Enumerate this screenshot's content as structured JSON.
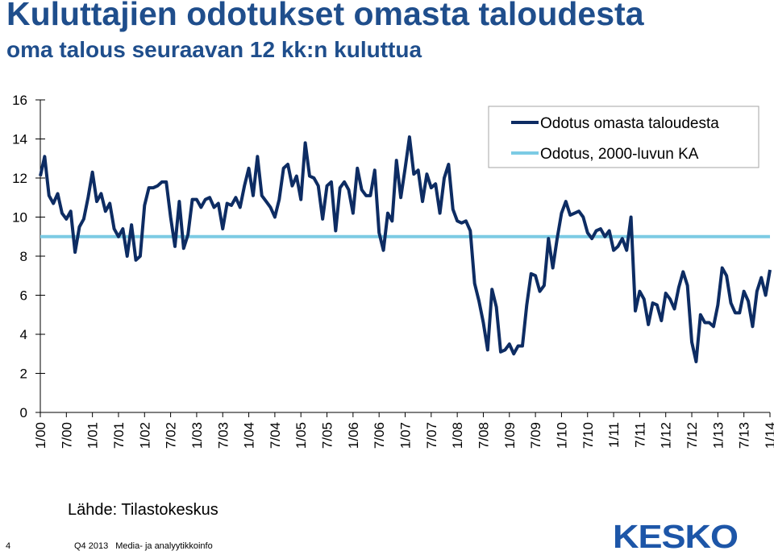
{
  "title": "Kuluttajien odotukset omasta taloudesta",
  "subtitle": "oma talous seuraavan 12 kk:n kuluttua",
  "source": "Lähde: Tilastokeskus",
  "page_number": "4",
  "footer": {
    "period": "Q4 2013",
    "unit": "Media- ja analyytikkoinfo"
  },
  "logo_text": "KESKO",
  "colors": {
    "title": "#1f4e8c",
    "series_main": "#0d2c63",
    "series_avg": "#7ccbe4",
    "logo": "#1d56a8"
  },
  "chart_data": {
    "type": "line",
    "ylim": [
      0,
      16
    ],
    "yticks": [
      0,
      2,
      4,
      6,
      8,
      10,
      12,
      14,
      16
    ],
    "x_tick_labels": [
      "1/00",
      "7/00",
      "1/01",
      "7/01",
      "1/02",
      "7/02",
      "1/03",
      "7/03",
      "1/04",
      "7/04",
      "1/05",
      "7/05",
      "1/06",
      "7/06",
      "1/07",
      "7/07",
      "1/08",
      "7/08",
      "1/09",
      "7/09",
      "1/10",
      "7/10",
      "1/11",
      "7/11",
      "1/12",
      "7/12",
      "1/13",
      "7/13",
      "1/14"
    ],
    "x_start": "1/2000",
    "x_frequency": "monthly",
    "legend_position": "top-right",
    "grid": false,
    "series": [
      {
        "name": "Odotus omasta taloudesta",
        "values": [
          12.1,
          13.1,
          11.1,
          10.7,
          11.2,
          10.2,
          9.9,
          10.3,
          8.2,
          9.5,
          9.9,
          11.0,
          12.3,
          10.8,
          11.2,
          10.3,
          10.7,
          9.4,
          9.0,
          9.4,
          8.0,
          9.6,
          7.8,
          8.0,
          10.6,
          11.5,
          11.5,
          11.6,
          11.8,
          11.8,
          10.0,
          8.5,
          10.8,
          8.4,
          9.1,
          10.9,
          10.9,
          10.5,
          10.9,
          11.0,
          10.5,
          10.7,
          9.4,
          10.7,
          10.6,
          11.0,
          10.5,
          11.6,
          12.5,
          11.1,
          13.1,
          11.1,
          10.8,
          10.5,
          10.0,
          10.9,
          12.5,
          12.7,
          11.6,
          12.1,
          10.9,
          13.8,
          12.1,
          12.0,
          11.6,
          9.9,
          11.6,
          11.8,
          9.3,
          11.5,
          11.8,
          11.4,
          10.2,
          12.5,
          11.4,
          11.1,
          11.1,
          12.4,
          9.2,
          8.3,
          10.2,
          9.8,
          12.9,
          11.0,
          12.5,
          14.1,
          12.2,
          12.4,
          10.8,
          12.2,
          11.5,
          11.7,
          10.2,
          12.0,
          12.7,
          10.4,
          9.8,
          9.7,
          9.8,
          9.3,
          6.6,
          5.7,
          4.6,
          3.2,
          6.3,
          5.4,
          3.1,
          3.2,
          3.5,
          3.0,
          3.4,
          3.4,
          5.5,
          7.1,
          7.0,
          6.2,
          6.5,
          8.9,
          7.4,
          8.9,
          10.2,
          10.8,
          10.1,
          10.2,
          10.3,
          10.0,
          9.2,
          8.9,
          9.3,
          9.4,
          9.0,
          9.3,
          8.3,
          8.5,
          8.9,
          8.3,
          10.0,
          5.2,
          6.2,
          5.8,
          4.5,
          5.6,
          5.5,
          4.7,
          6.1,
          5.8,
          5.3,
          6.4,
          7.2,
          6.5,
          3.6,
          2.6,
          5.0,
          4.6,
          4.6,
          4.4,
          5.5,
          7.4,
          7.0,
          5.6,
          5.1,
          5.1,
          6.2,
          5.7,
          4.4,
          6.2,
          6.9,
          6.0,
          7.3
        ]
      },
      {
        "name": "Odotus, 2000-luvun KA",
        "values": [
          9.0,
          9.0
        ]
      }
    ]
  }
}
